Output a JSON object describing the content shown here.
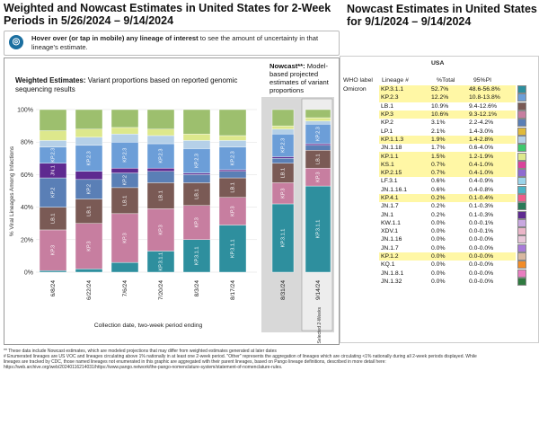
{
  "header": {
    "left_title": "Weighted and Nowcast Estimates in United States for 2-Week Periods in 5/26/2024 – 9/14/2024",
    "right_title": "Nowcast Estimates in United States for 9/1/2024 – 9/14/2024"
  },
  "hover_note": {
    "bold": "Hover over (or tap in mobile) any lineage of interest",
    "rest": " to see the amount of uncertainty in that lineage's estimate."
  },
  "weighted": {
    "title_bold": "Weighted Estimates:",
    "title_rest": " Variant proportions based on reported genomic sequencing results"
  },
  "nowcast": {
    "title_bold": "Nowcast**:",
    "title_rest": " Model-based projected estimates of variant proportions"
  },
  "chart_data": {
    "type": "bar",
    "stacked": true,
    "ylabel": "% Viral Lineages Among Infections",
    "xlabel": "Collection date, two-week period ending",
    "ylim": [
      0,
      100
    ],
    "y_ticks": [
      "0%",
      "20%",
      "40%",
      "60%",
      "80%",
      "100%"
    ],
    "categories": [
      "6/8/24",
      "6/22/24",
      "7/6/24",
      "7/20/24",
      "8/3/24",
      "8/17/24",
      "8/31/24",
      "9/14/24"
    ],
    "nowcast_categories": [
      "8/31/24",
      "9/14/24"
    ],
    "selected_label": "Selected 2-Weeks",
    "series": [
      {
        "name": "KP.3.1.1",
        "color": "#2e8f9e",
        "label": "KP.3.1.1",
        "values": [
          1,
          2,
          6,
          13,
          20,
          29,
          42,
          53
        ]
      },
      {
        "name": "KP.3",
        "color": "#c77ea0",
        "label": "KP.3",
        "values": [
          25,
          28,
          30,
          26,
          21,
          17,
          13,
          11
        ]
      },
      {
        "name": "LB.1",
        "color": "#7a5a55",
        "label": "LB.1",
        "values": [
          14,
          15,
          16,
          16,
          14,
          12,
          12,
          11
        ]
      },
      {
        "name": "KP.2",
        "color": "#5a7fb6",
        "label": "KP.2",
        "values": [
          18,
          12,
          9,
          7,
          5,
          4,
          3,
          3
        ]
      },
      {
        "name": "JN.1",
        "color": "#5e2a90",
        "label": "JN.1",
        "values": [
          9,
          5,
          3,
          2,
          1,
          1,
          1,
          1
        ]
      },
      {
        "name": "KP.2.3",
        "color": "#6c9ed8",
        "label": "KP.2.3",
        "values": [
          10,
          16,
          16,
          15,
          15,
          14,
          14,
          12
        ]
      },
      {
        "name": "KP.1.1.3",
        "color": "#b5d0e8",
        "label": "KP.1.1.3",
        "values": [
          4,
          5,
          5,
          5,
          5,
          4,
          3,
          2
        ]
      },
      {
        "name": "KP.1.1",
        "color": "#dde88c",
        "label": "KP.1.1",
        "values": [
          6,
          5,
          4,
          4,
          4,
          3,
          2,
          2
        ]
      },
      {
        "name": "Other",
        "color": "#9dbf6e",
        "label": "",
        "values": [
          13,
          12,
          11,
          12,
          15,
          16,
          10,
          5
        ]
      }
    ]
  },
  "table": {
    "region": "USA",
    "col_who": "WHO label",
    "col_lineage": "Lineage #",
    "col_total": "%Total",
    "col_pi": "95%PI",
    "who_group": "Omicron",
    "rows": [
      {
        "lineage": "KP.3.1.1",
        "total": "52.7%",
        "pi": "48.6-56.8%",
        "color": "#2e8f9e",
        "hl": true
      },
      {
        "lineage": "KP.2.3",
        "total": "12.2%",
        "pi": "10.8-13.8%",
        "color": "#6c9ed8",
        "hl": true
      },
      {
        "lineage": "LB.1",
        "total": "10.9%",
        "pi": "9.4-12.6%",
        "color": "#7a5a55",
        "hl": false
      },
      {
        "lineage": "KP.3",
        "total": "10.6%",
        "pi": "9.3-12.1%",
        "color": "#c77ea0",
        "hl": true
      },
      {
        "lineage": "KP.2",
        "total": "3.1%",
        "pi": "2.2-4.2%",
        "color": "#5a7fb6",
        "hl": false
      },
      {
        "lineage": "LP.1",
        "total": "2.1%",
        "pi": "1.4-3.0%",
        "color": "#e0b93a",
        "hl": false
      },
      {
        "lineage": "KP.1.1.3",
        "total": "1.9%",
        "pi": "1.4-2.8%",
        "color": "#b5d0e8",
        "hl": true
      },
      {
        "lineage": "JN.1.18",
        "total": "1.7%",
        "pi": "0.6-4.0%",
        "color": "#3ec86e",
        "hl": false
      },
      {
        "lineage": "KP.1.1",
        "total": "1.5%",
        "pi": "1.2-1.9%",
        "color": "#dde88c",
        "hl": true
      },
      {
        "lineage": "KS.1",
        "total": "0.7%",
        "pi": "0.4-1.0%",
        "color": "#d9439b",
        "hl": true
      },
      {
        "lineage": "KP.2.15",
        "total": "0.7%",
        "pi": "0.4-1.0%",
        "color": "#8e6ad0",
        "hl": true
      },
      {
        "lineage": "LF.3.1",
        "total": "0.6%",
        "pi": "0.4-0.9%",
        "color": "#9bd4ea",
        "hl": false
      },
      {
        "lineage": "JN.1.16.1",
        "total": "0.6%",
        "pi": "0.4-0.8%",
        "color": "#4db3c5",
        "hl": false
      },
      {
        "lineage": "KP.4.1",
        "total": "0.2%",
        "pi": "0.1-0.4%",
        "color": "#f05c8a",
        "hl": true
      },
      {
        "lineage": "JN.1.7",
        "total": "0.2%",
        "pi": "0.1-0.3%",
        "color": "#2a7a58",
        "hl": false
      },
      {
        "lineage": "JN.1",
        "total": "0.2%",
        "pi": "0.1-0.3%",
        "color": "#5e2a90",
        "hl": false
      },
      {
        "lineage": "KW.1.1",
        "total": "0.0%",
        "pi": "0.0-0.1%",
        "color": "#c8a8e0",
        "hl": false
      },
      {
        "lineage": "XDV.1",
        "total": "0.0%",
        "pi": "0.0-0.1%",
        "color": "#ebb5c8",
        "hl": false
      },
      {
        "lineage": "JN.1.16",
        "total": "0.0%",
        "pi": "0.0-0.0%",
        "color": "#e8c6d8",
        "hl": false
      },
      {
        "lineage": "JN.1.7",
        "total": "0.0%",
        "pi": "0.0-0.0%",
        "color": "#a87ad8",
        "hl": false
      },
      {
        "lineage": "KP.1.2",
        "total": "0.0%",
        "pi": "0.0-0.0%",
        "color": "#d8b8a0",
        "hl": true
      },
      {
        "lineage": "KQ.1",
        "total": "0.0%",
        "pi": "0.0-0.0%",
        "color": "#f28c28",
        "hl": false
      },
      {
        "lineage": "JN.1.8.1",
        "total": "0.0%",
        "pi": "0.0-0.0%",
        "color": "#e87dc0",
        "hl": false
      },
      {
        "lineage": "JN.1.32",
        "total": "0.0%",
        "pi": "0.0-0.0%",
        "color": "#2f7a40",
        "hl": false
      }
    ]
  },
  "footnote": {
    "line1": "** These data include Nowcast estimates, which are modeled projections that may differ from weighted estimates generated at later dates",
    "line2": "# Enumerated lineages are US VOC and lineages circulating above 1% nationally in at least one 2-week period. \"Other\" represents the aggregation of lineages which are circulating <1% nationally during all 2-week periods displayed. While",
    "line3": "lineages are tracked by CDC, those named lineages not enumerated in this graphic are aggregated with their parent lineages, based on Pango lineage definitions, described in more detail here:",
    "line4": "https://web.archive.org/web/20240116214031/https://www.pango.network/the-pango-nomenclature-system/statement-of-nomenclature-rules."
  }
}
